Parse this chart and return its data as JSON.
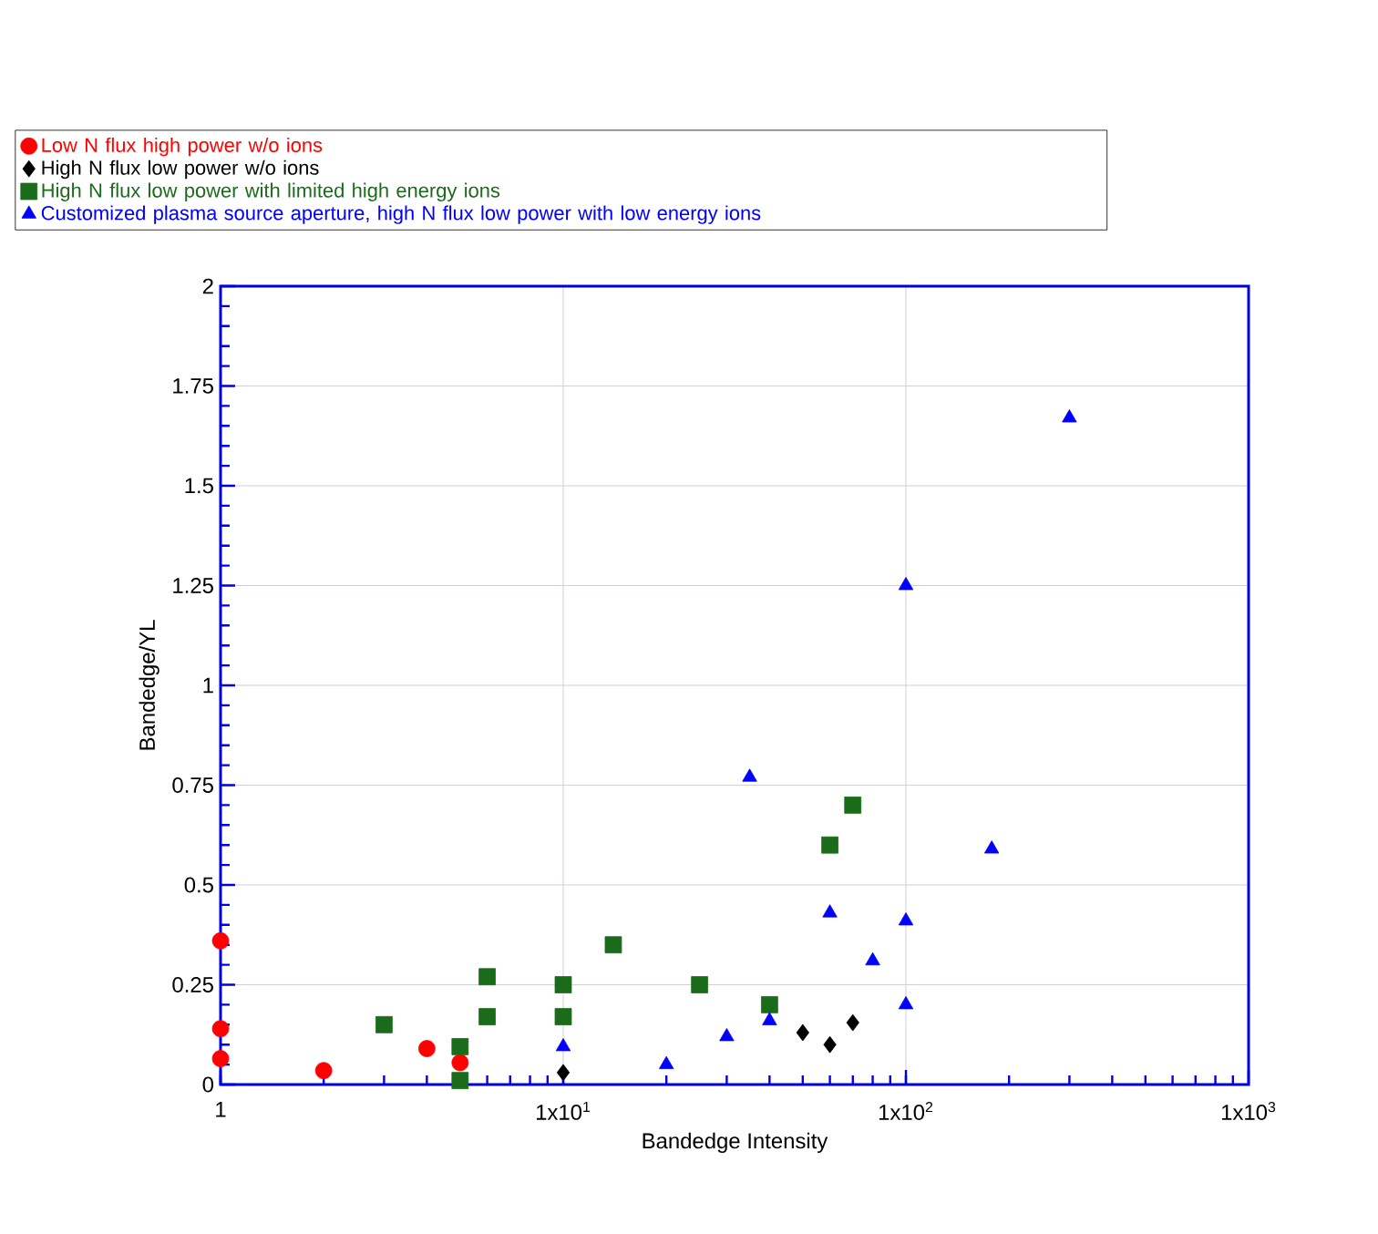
{
  "chart_data": {
    "type": "scatter",
    "xlabel": "Bandedge Intensity",
    "ylabel": "Bandedge/YL",
    "log": "x",
    "xlim": [
      1,
      1000
    ],
    "ylim": [
      0,
      2
    ],
    "xticks": [
      1,
      {
        "value": 10,
        "label": "1x10$^{1}$"
      },
      {
        "value": 100,
        "label": "1x10$^{2}$"
      },
      {
        "value": 1000,
        "label": "1x10$^{3}$"
      }
    ],
    "yticks": [
      0,
      0.25,
      0.5,
      0.75,
      1,
      1.25,
      1.5,
      1.75,
      2
    ],
    "grid": true,
    "legend": "top",
    "series": [
      {
        "name": "Low N flux  high power w/o ions",
        "color": "#ff0000",
        "marker": "circle",
        "x": [
          1,
          1,
          1,
          2,
          4,
          5
        ],
        "values": [
          0.36,
          0.14,
          0.065,
          0.035,
          0.09,
          0.055
        ]
      },
      {
        "name": "High N flux low power w/o ions",
        "color": "#000000",
        "marker": "diamond",
        "x": [
          10,
          50,
          60,
          70
        ],
        "values": [
          0.03,
          0.13,
          0.1,
          0.155
        ]
      },
      {
        "name": "High N flux low power with limited high energy ions",
        "color": "#1a6b1a",
        "marker": "square",
        "x": [
          3,
          5,
          5,
          6,
          6,
          10,
          10,
          14,
          25,
          40,
          60,
          70
        ],
        "values": [
          0.15,
          0.095,
          0.01,
          0.27,
          0.17,
          0.25,
          0.17,
          0.35,
          0.25,
          0.2,
          0.6,
          0.7
        ]
      },
      {
        "name": "Customized plasma source aperture, high N flux  low power with low energy ions",
        "color": "#0000ff",
        "marker": "triangle",
        "x": [
          300,
          100,
          35,
          178,
          60,
          100,
          80,
          100,
          40,
          30,
          10,
          20
        ],
        "values": [
          1.67,
          1.25,
          0.77,
          0.59,
          0.43,
          0.41,
          0.31,
          0.2,
          0.16,
          0.12,
          0.095,
          0.05
        ]
      }
    ]
  }
}
